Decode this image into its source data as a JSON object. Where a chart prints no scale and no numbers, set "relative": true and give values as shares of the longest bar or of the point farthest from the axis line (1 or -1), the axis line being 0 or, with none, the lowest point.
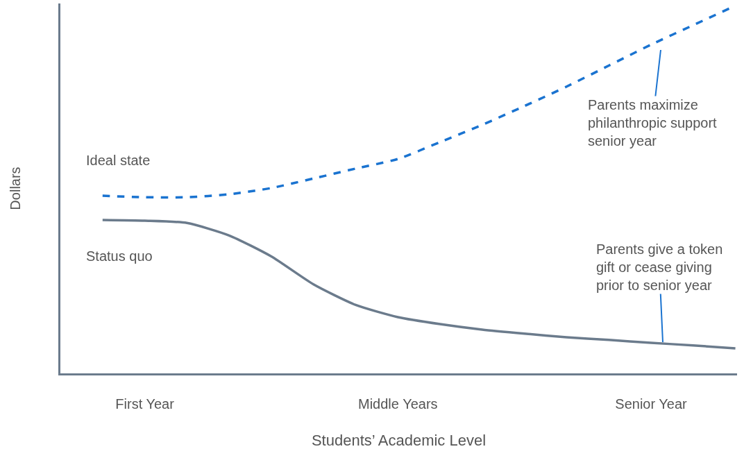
{
  "chart_data": {
    "type": "line",
    "relative": true,
    "xlabel": "Students’ Academic Level",
    "ylabel": "Dollars",
    "categories": [
      null,
      null,
      "First Year",
      null,
      null,
      null,
      null,
      null,
      "Middle Years",
      null,
      null,
      null,
      null,
      null,
      "Senior Year",
      null,
      null
    ],
    "series": [
      {
        "name": "Ideal state",
        "color": "#1a73d0",
        "line_style": "dashed",
        "values": [
          null,
          0.483,
          0.479,
          0.479,
          0.487,
          0.504,
          0.53,
          0.557,
          0.583,
          0.629,
          0.676,
          0.727,
          0.78,
          0.837,
          0.894,
          0.947,
          1.0
        ]
      },
      {
        "name": "Status quo",
        "color": "#6b7b8c",
        "line_style": "solid",
        "values": [
          null,
          0.417,
          0.415,
          0.409,
          0.375,
          0.318,
          0.242,
          0.186,
          0.153,
          0.134,
          0.119,
          0.108,
          0.098,
          0.091,
          0.083,
          0.076,
          0.068
        ]
      }
    ],
    "annotations": [
      "Parents maximize\nphilanthropic support\nsenior year",
      "Parents give a token\ngift or cease giving\nprior to senior year"
    ],
    "marker": "none"
  }
}
